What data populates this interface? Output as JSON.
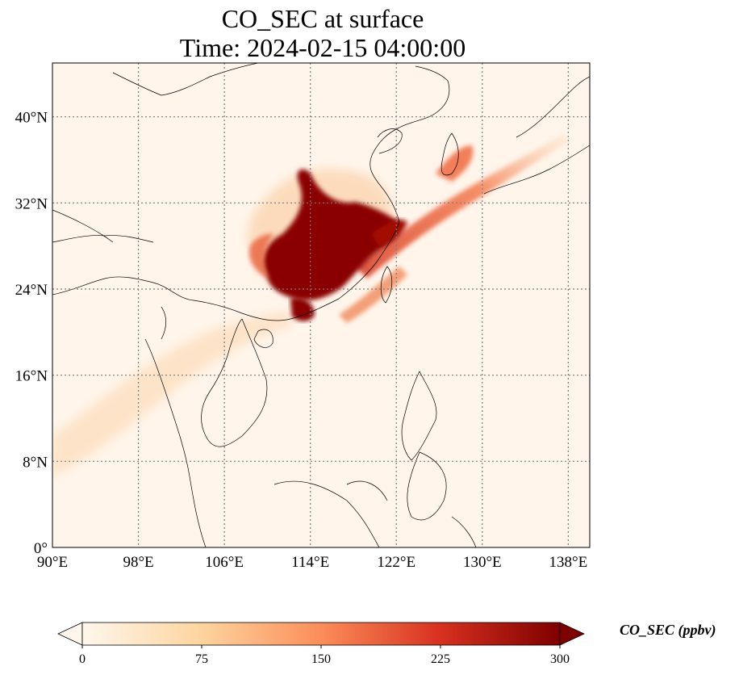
{
  "title": {
    "line1": "CO_SEC at surface",
    "line2": "Time: 2024-02-15 04:00:00"
  },
  "map": {
    "lon_range": [
      90,
      140
    ],
    "lat_range": [
      0,
      45
    ],
    "lon_ticks": [
      {
        "value": 90,
        "label": "90°E"
      },
      {
        "value": 98,
        "label": "98°E"
      },
      {
        "value": 106,
        "label": "106°E"
      },
      {
        "value": 114,
        "label": "114°E"
      },
      {
        "value": 122,
        "label": "122°E"
      },
      {
        "value": 130,
        "label": "130°E"
      },
      {
        "value": 138,
        "label": "138°E"
      }
    ],
    "lat_ticks": [
      {
        "value": 0,
        "label": "0°"
      },
      {
        "value": 8,
        "label": "8°N"
      },
      {
        "value": 16,
        "label": "16°N"
      },
      {
        "value": 24,
        "label": "24°N"
      },
      {
        "value": 32,
        "label": "32°N"
      },
      {
        "value": 40,
        "label": "40°N"
      }
    ],
    "gridlines": true,
    "colormap": "OrRd",
    "colors": {
      "background": "#fff5ea",
      "low": "#fde9cf",
      "mid": "#fdb57e",
      "high": "#e0482c",
      "max": "#7f0000",
      "coastline": "#000000",
      "grid": "#7a7a7a"
    }
  },
  "colorbar": {
    "title": "CO_SEC (ppbv)",
    "min": 0,
    "max": 300,
    "extend": "both",
    "ticks": [
      {
        "value": 0,
        "label": "0"
      },
      {
        "value": 75,
        "label": "75"
      },
      {
        "value": 150,
        "label": "150"
      },
      {
        "value": 225,
        "label": "225"
      },
      {
        "value": 300,
        "label": "300"
      }
    ]
  }
}
